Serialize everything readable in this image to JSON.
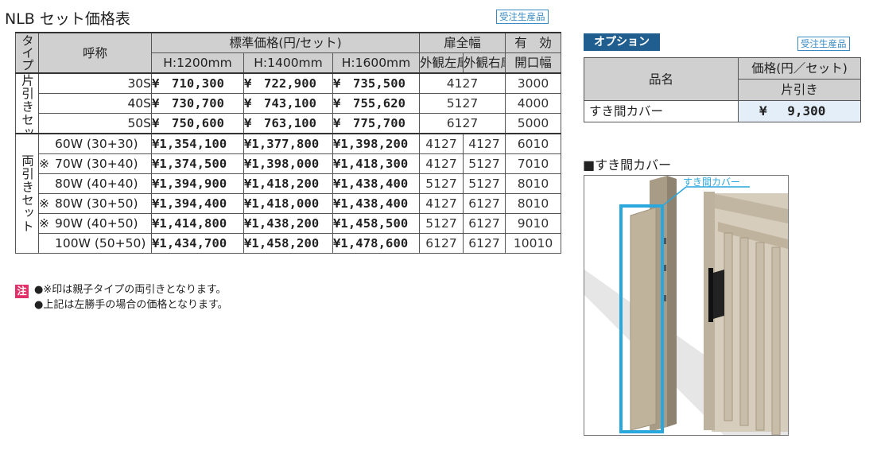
{
  "title": "NLB セット価格表",
  "badge_label": "受注生産品",
  "main_table": {
    "header": {
      "type": "タイプ",
      "name": "呼称",
      "std_price": "標準価格(円/セット)",
      "h1200": "H:1200mm",
      "h1400": "H:1400mm",
      "h1600": "H:1600mm",
      "door_width": "扉全幅",
      "outer_left": "外観左扉",
      "outer_right": "外観右扉",
      "effective_1": "有　効",
      "effective_2": "開口幅"
    },
    "groups": [
      {
        "type_label": "片引きセット",
        "rows": [
          {
            "mark": "",
            "name": "30S",
            "p1200": "¥　710,300",
            "p1400": "¥　722,900",
            "p1600": "¥　735,500",
            "door": "4127",
            "eff": "3000"
          },
          {
            "mark": "",
            "name": "40S",
            "p1200": "¥　730,700",
            "p1400": "¥　743,100",
            "p1600": "¥　755,620",
            "door": "5127",
            "eff": "4000"
          },
          {
            "mark": "",
            "name": "50S",
            "p1200": "¥　750,600",
            "p1400": "¥　763,100",
            "p1600": "¥　775,700",
            "door": "6127",
            "eff": "5000"
          }
        ]
      },
      {
        "type_label": "両引きセット",
        "rows": [
          {
            "mark": "",
            "name": "60W (30+30)",
            "p1200": "¥1,354,100",
            "p1400": "¥1,377,800",
            "p1600": "¥1,398,200",
            "left": "4127",
            "right": "4127",
            "eff": "6010"
          },
          {
            "mark": "※",
            "name": "70W (30+40)",
            "p1200": "¥1,374,500",
            "p1400": "¥1,398,000",
            "p1600": "¥1,418,300",
            "left": "4127",
            "right": "5127",
            "eff": "7010"
          },
          {
            "mark": "",
            "name": "80W (40+40)",
            "p1200": "¥1,394,900",
            "p1400": "¥1,418,200",
            "p1600": "¥1,438,400",
            "left": "5127",
            "right": "5127",
            "eff": "8010"
          },
          {
            "mark": "※",
            "name": "80W (30+50)",
            "p1200": "¥1,394,400",
            "p1400": "¥1,418,000",
            "p1600": "¥1,438,400",
            "left": "4127",
            "right": "6127",
            "eff": "8010"
          },
          {
            "mark": "※",
            "name": "90W (40+50)",
            "p1200": "¥1,414,800",
            "p1400": "¥1,438,200",
            "p1600": "¥1,458,500",
            "left": "5127",
            "right": "6127",
            "eff": "9010"
          },
          {
            "mark": "",
            "name": "100W (50+50)",
            "p1200": "¥1,434,700",
            "p1400": "¥1,458,200",
            "p1600": "¥1,478,600",
            "left": "6127",
            "right": "6127",
            "eff": "10010"
          }
        ]
      }
    ]
  },
  "notes": {
    "mark": "注",
    "lines": [
      "●※印は親子タイプの両引きとなります。",
      "●上記は左勝手の場合の価格となります。"
    ]
  },
  "option": {
    "label": "オプション",
    "header_name": "品名",
    "header_price": "価格(円／セット)",
    "header_sub": "片引き",
    "item_name": "すき間カバー",
    "item_price": "¥　 9,300"
  },
  "figure": {
    "title": "■すき間カバー",
    "callout": "すき間カバー",
    "colors": {
      "post": "#b8ad98",
      "frame": "#c9bfae",
      "callout": "#2aa7dc"
    }
  }
}
